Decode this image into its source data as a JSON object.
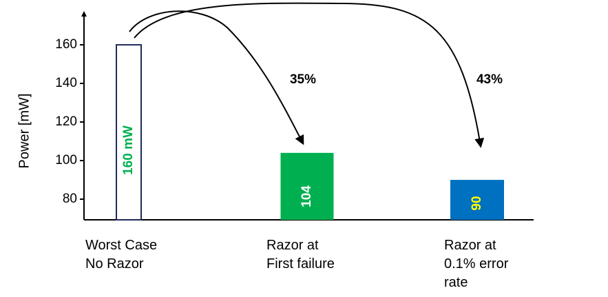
{
  "chart_data": {
    "type": "bar",
    "y_label": "Power [mW]",
    "categories": [
      "Worst Case\nNo Razor",
      "Razor at\nFirst failure",
      "Razor at\n0.1% error\nrate"
    ],
    "values": [
      160,
      104,
      90
    ],
    "value_labels": [
      "160 mW",
      "104",
      "90"
    ],
    "colors": [
      "#ffffff",
      "#00b050",
      "#0070c0"
    ],
    "label_colors": [
      "#00b050",
      "#ffffff",
      "#ffff00"
    ],
    "ylim": [
      69.3,
      176.8
    ],
    "yticks": [
      80,
      100,
      120,
      140,
      160
    ],
    "annotations": [
      "35%",
      "43%"
    ],
    "grid": false
  }
}
